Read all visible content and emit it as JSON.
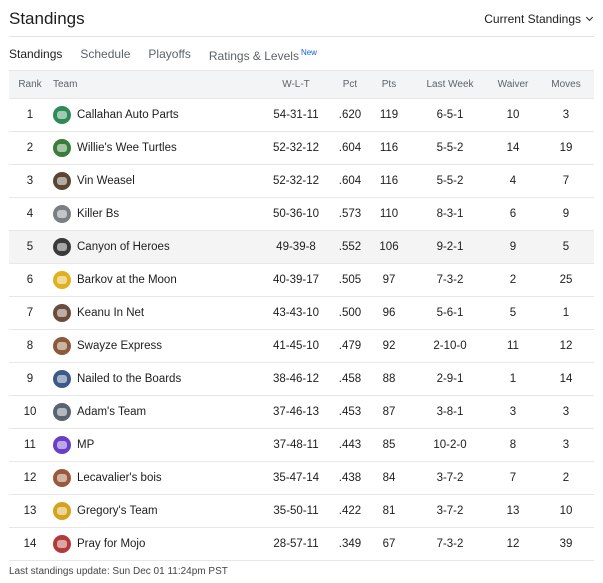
{
  "header": {
    "title": "Standings",
    "dropdown_label": "Current Standings"
  },
  "tabs": [
    {
      "label": "Standings",
      "active": true
    },
    {
      "label": "Schedule",
      "active": false
    },
    {
      "label": "Playoffs",
      "active": false
    },
    {
      "label": "Ratings & Levels",
      "active": false,
      "badge": "New"
    }
  ],
  "table": {
    "columns": {
      "rank": "Rank",
      "team": "Team",
      "wlt": "W-L-T",
      "pct": "Pct",
      "pts": "Pts",
      "last_week": "Last Week",
      "waiver": "Waiver",
      "moves": "Moves"
    },
    "rows": [
      {
        "rank": "1",
        "team": "Callahan Auto Parts",
        "logo_color": "#2e8b57",
        "wlt": "54-31-11",
        "pct": ".620",
        "pts": "119",
        "last_week": "6-5-1",
        "waiver": "10",
        "moves": "3"
      },
      {
        "rank": "2",
        "team": "Willie's Wee Turtles",
        "logo_color": "#3a7d3a",
        "wlt": "52-32-12",
        "pct": ".604",
        "pts": "116",
        "last_week": "5-5-2",
        "waiver": "14",
        "moves": "19"
      },
      {
        "rank": "3",
        "team": "Vin Weasel",
        "logo_color": "#5a4632",
        "wlt": "52-32-12",
        "pct": ".604",
        "pts": "116",
        "last_week": "5-5-2",
        "waiver": "4",
        "moves": "7"
      },
      {
        "rank": "4",
        "team": "Killer Bs",
        "logo_color": "#7a7f86",
        "wlt": "50-36-10",
        "pct": ".573",
        "pts": "110",
        "last_week": "8-3-1",
        "waiver": "6",
        "moves": "9"
      },
      {
        "rank": "5",
        "team": "Canyon of Heroes",
        "logo_color": "#3a3a3a",
        "wlt": "49-39-8",
        "pct": ".552",
        "pts": "106",
        "last_week": "9-2-1",
        "waiver": "9",
        "moves": "5",
        "highlight": true
      },
      {
        "rank": "6",
        "team": "Barkov at the Moon",
        "logo_color": "#e0b020",
        "wlt": "40-39-17",
        "pct": ".505",
        "pts": "97",
        "last_week": "7-3-2",
        "waiver": "2",
        "moves": "25"
      },
      {
        "rank": "7",
        "team": "Keanu In Net",
        "logo_color": "#6b4c3b",
        "wlt": "43-43-10",
        "pct": ".500",
        "pts": "96",
        "last_week": "5-6-1",
        "waiver": "5",
        "moves": "1"
      },
      {
        "rank": "8",
        "team": "Swayze Express",
        "logo_color": "#8a5a3a",
        "wlt": "41-45-10",
        "pct": ".479",
        "pts": "92",
        "last_week": "2-10-0",
        "waiver": "11",
        "moves": "12"
      },
      {
        "rank": "9",
        "team": "Nailed to the Boards",
        "logo_color": "#3b5a8a",
        "wlt": "38-46-12",
        "pct": ".458",
        "pts": "88",
        "last_week": "2-9-1",
        "waiver": "1",
        "moves": "14"
      },
      {
        "rank": "10",
        "team": "Adam's Team",
        "logo_color": "#5a6470",
        "wlt": "37-46-13",
        "pct": ".453",
        "pts": "87",
        "last_week": "3-8-1",
        "waiver": "3",
        "moves": "3"
      },
      {
        "rank": "11",
        "team": "MP",
        "logo_color": "#6a3fc8",
        "wlt": "37-48-11",
        "pct": ".443",
        "pts": "85",
        "last_week": "10-2-0",
        "waiver": "8",
        "moves": "3"
      },
      {
        "rank": "12",
        "team": "Lecavalier's bois",
        "logo_color": "#9a5a3a",
        "wlt": "35-47-14",
        "pct": ".438",
        "pts": "84",
        "last_week": "3-7-2",
        "waiver": "7",
        "moves": "2"
      },
      {
        "rank": "13",
        "team": "Gregory's Team",
        "logo_color": "#d4a21c",
        "wlt": "35-50-11",
        "pct": ".422",
        "pts": "81",
        "last_week": "3-7-2",
        "waiver": "13",
        "moves": "10"
      },
      {
        "rank": "14",
        "team": "Pray for Mojo",
        "logo_color": "#b23a3a",
        "wlt": "28-57-11",
        "pct": ".349",
        "pts": "67",
        "last_week": "7-3-2",
        "waiver": "12",
        "moves": "39"
      }
    ]
  },
  "footer": {
    "text": "Last standings update: Sun Dec 01 11:24pm PST"
  }
}
